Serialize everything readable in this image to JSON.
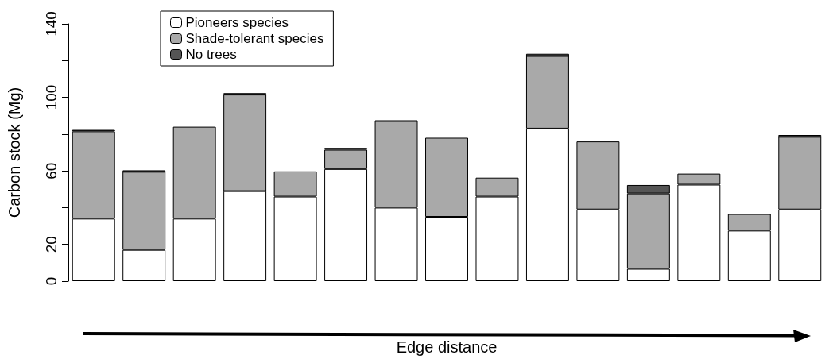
{
  "chart_data": {
    "type": "bar",
    "stacked": true,
    "xlabel": "Edge distance",
    "ylabel": "Carbon stock (Mg)",
    "categories": [
      null,
      null,
      null,
      null,
      null,
      null,
      null,
      null,
      null,
      null,
      null,
      null,
      null,
      null,
      null
    ],
    "series": [
      {
        "name": "Pioneers species",
        "color": "#ffffff",
        "values": [
          34,
          17,
          34,
          49,
          46,
          61,
          40,
          35,
          46,
          83,
          39,
          6.7,
          52.5,
          27.5,
          39
        ]
      },
      {
        "name": "Shade-tolerant species",
        "color": "#a9a9a9",
        "values": [
          47.5,
          42.5,
          50,
          52.5,
          13.7,
          10.5,
          47.5,
          43,
          10.3,
          39.5,
          37,
          41,
          6,
          9,
          39.5
        ]
      },
      {
        "name": "No trees",
        "color": "#555555",
        "values": [
          0.8,
          0.8,
          null,
          0.8,
          null,
          1,
          null,
          null,
          null,
          1.2,
          null,
          4.6,
          null,
          null,
          1
        ]
      }
    ],
    "ylim": [
      0,
      140
    ],
    "yticks": [
      0,
      20,
      {
        "value": 40,
        "label": null
      },
      60,
      {
        "value": 80,
        "label": null
      },
      100,
      {
        "value": 120,
        "label": null
      },
      140
    ],
    "tick_labels": "y",
    "grid": false,
    "legend": "top left"
  }
}
